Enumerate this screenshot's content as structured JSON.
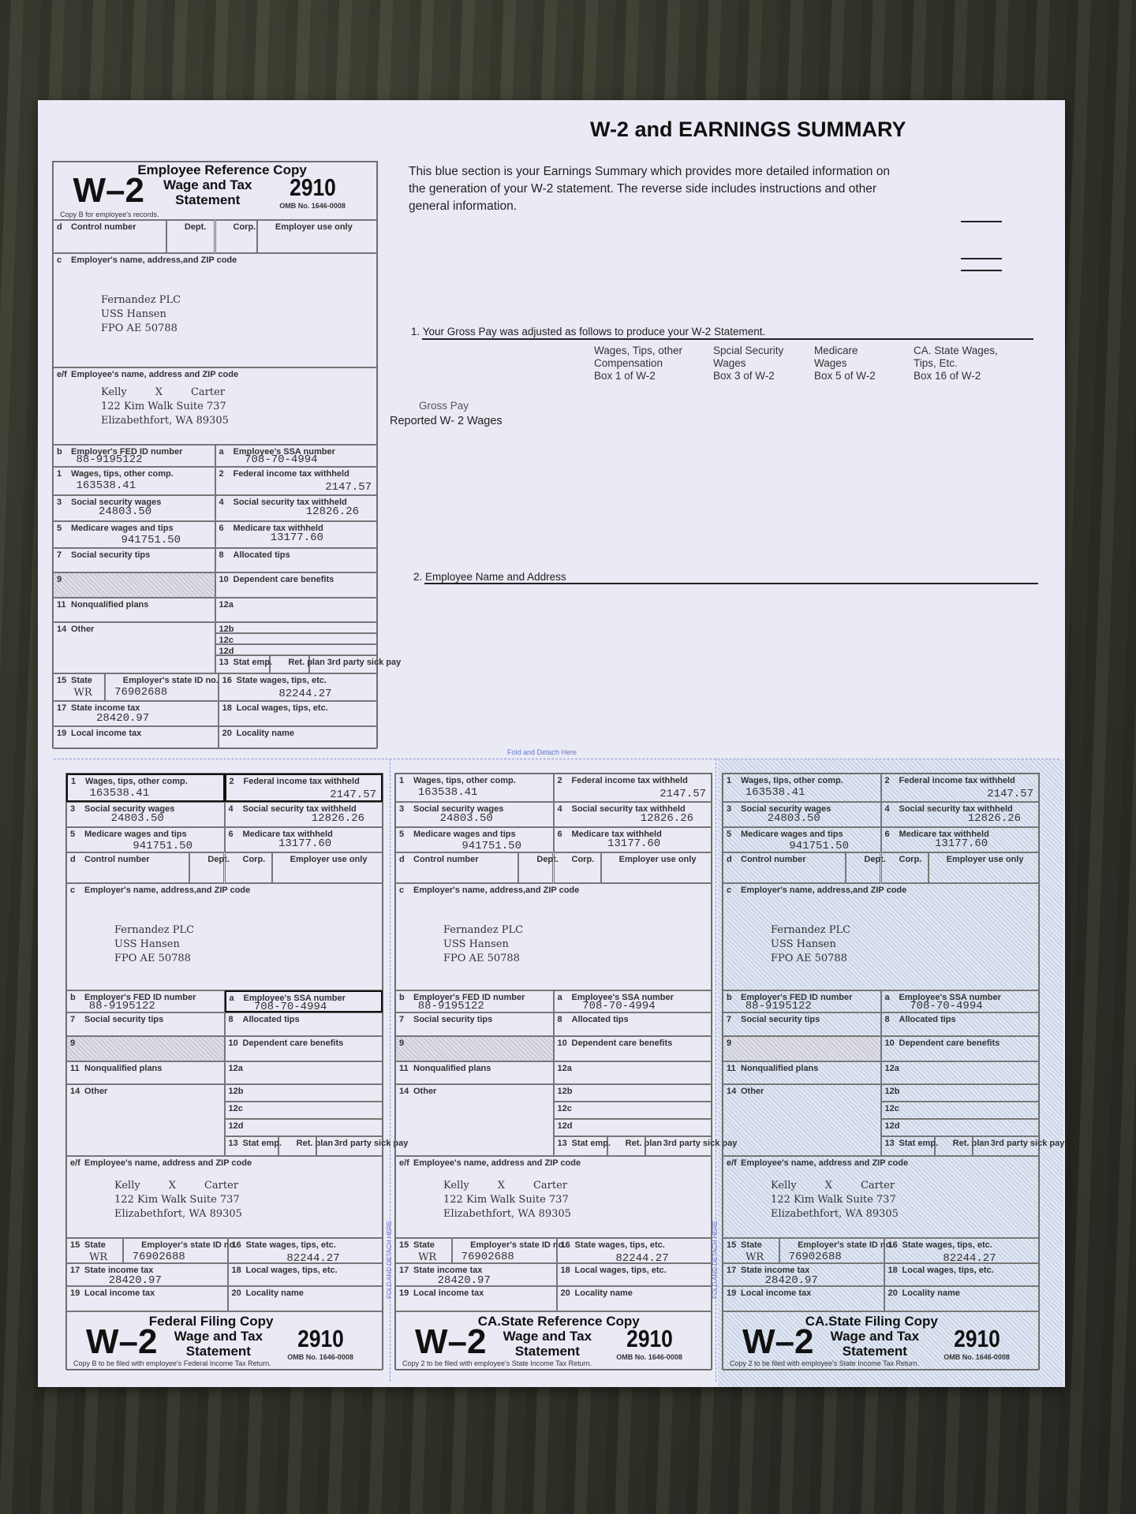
{
  "summary": {
    "title": "W-2 and EARNINGS SUMMARY",
    "intro": "This blue section is your Earnings Summary which provides more detailed information on the generation of your W-2 statement.  The reverse side includes instructions and other general information.",
    "section1": "1. Your Gross Pay was adjusted as follows to produce your W-2 Statement.",
    "columns": [
      {
        "line1": "Wages, Tips, other",
        "line2": "Compensation",
        "line3": "Box 1 of W-2"
      },
      {
        "line1": "Spcial Security",
        "line2": "Wages",
        "line3": "Box 3 of W-2"
      },
      {
        "line1": "Medicare",
        "line2": "Wages",
        "line3": "Box 5 of W-2"
      },
      {
        "line1": "CA. State Wages,",
        "line2": "Tips, Etc.",
        "line3": "Box 16 of W-2"
      }
    ],
    "gross_pay": "Gross Pay",
    "reported_wages": "Reported  W- 2  Wages",
    "section2": "2. Employee Name and Address",
    "fold_label": "Fold and Detach Here",
    "vertical_fold_label": "FOLD AND DETACH HERE"
  },
  "labels": {
    "d": {
      "n": "d",
      "t": "Control number"
    },
    "dept": {
      "n": "",
      "t": "Dept."
    },
    "corp": {
      "n": "",
      "t": "Corp."
    },
    "emp_use": {
      "n": "",
      "t": "Employer use only"
    },
    "c": {
      "n": "c",
      "t": "Employer's name, address,and ZIP code"
    },
    "ef": {
      "n": "e/f",
      "t": "Employee's name, address and ZIP code"
    },
    "b": {
      "n": "b",
      "t": "Employer's FED ID number"
    },
    "a": {
      "n": "a",
      "t": "Employee's SSA number"
    },
    "b1": {
      "n": "1",
      "t": "Wages, tips, other comp."
    },
    "b2": {
      "n": "2",
      "t": "Federal income tax withheld"
    },
    "b3": {
      "n": "3",
      "t": "Social security wages"
    },
    "b4": {
      "n": "4",
      "t": "Social security tax withheld"
    },
    "b5": {
      "n": "5",
      "t": "Medicare wages and tips"
    },
    "b6": {
      "n": "6",
      "t": "Medicare tax withheld"
    },
    "b7": {
      "n": "7",
      "t": "Social security tips"
    },
    "b8": {
      "n": "8",
      "t": "Allocated tips"
    },
    "b9": {
      "n": "9",
      "t": ""
    },
    "b10": {
      "n": "10",
      "t": "Dependent care benefits"
    },
    "b11": {
      "n": "11",
      "t": "Nonqualified plans"
    },
    "b12a": {
      "n": "12a",
      "t": ""
    },
    "b12b": {
      "n": "12b",
      "t": ""
    },
    "b12c": {
      "n": "12c",
      "t": ""
    },
    "b12d": {
      "n": "12d",
      "t": ""
    },
    "b13": {
      "n": "13",
      "t": "Stat emp."
    },
    "ret": {
      "n": "",
      "t": "Ret. plan"
    },
    "sick": {
      "n": "",
      "t": "3rd party sick pay"
    },
    "b14": {
      "n": "14",
      "t": "Other"
    },
    "b15": {
      "n": "15",
      "t": "State"
    },
    "state_id": {
      "n": "",
      "t": "Employer's state ID no."
    },
    "b16": {
      "n": "16",
      "t": "State wages, tips, etc."
    },
    "b17": {
      "n": "17",
      "t": "State income tax"
    },
    "b18": {
      "n": "18",
      "t": "Local wages, tips, etc."
    },
    "b19": {
      "n": "19",
      "t": "Local income tax"
    },
    "b20": {
      "n": "20",
      "t": "Locality name"
    }
  },
  "values": {
    "employer": [
      "Fernandez PLC",
      "USS Hansen",
      "FPO AE 50788"
    ],
    "employee_first": "Kelly",
    "employee_middle": "X",
    "employee_last": "Carter",
    "employee_address": [
      "122 Kim Walk Suite 737",
      "Elizabethfort, WA 89305"
    ],
    "fed_id": "88-9195122",
    "ssa": "708-70-4994",
    "b1": "163538.41",
    "b2": "2147.57",
    "b3": "24803.50",
    "b4": "12826.26",
    "b5": "941751.50",
    "b6": "13177.60",
    "state": "WR",
    "state_id": "76902688",
    "b16": "82244.27",
    "b17": "28420.97"
  },
  "copies": [
    {
      "title": "Employee Reference Copy",
      "w2": "W–2",
      "sub1": "Wage and Tax",
      "sub2": "Statement",
      "form_no": "2910",
      "omb": "OMB No.  1646-0008",
      "note": "Copy B for employee's records."
    },
    {
      "title": "Federal Filing Copy",
      "w2": "W–2",
      "sub1": "Wage and Tax",
      "sub2": "Statement",
      "form_no": "2910",
      "omb": "OMB No.  1646-0008",
      "note": "Copy B to be filed with   employee's    Federal Income Tax Return."
    },
    {
      "title": "CA.State Reference Copy",
      "w2": "W–2",
      "sub1": "Wage and Tax",
      "sub2": "Statement",
      "form_no": "2910",
      "omb": "OMB No.  1646-0008",
      "note": "Copy 2 to be filed with  employee's State Income Tax    Return."
    },
    {
      "title": "CA.State Filing Copy",
      "w2": "W–2",
      "sub1": "Wage and Tax",
      "sub2": "Statement",
      "form_no": "2910",
      "omb": "OMB No.  1646-0008",
      "note": "Copy 2 to be filed with  employee's State Income Tax    Return."
    }
  ],
  "colors": {
    "paper": "#e9eaf4",
    "filing_copy_tint": "#d6deee",
    "fold_line": "#8a95d8"
  }
}
